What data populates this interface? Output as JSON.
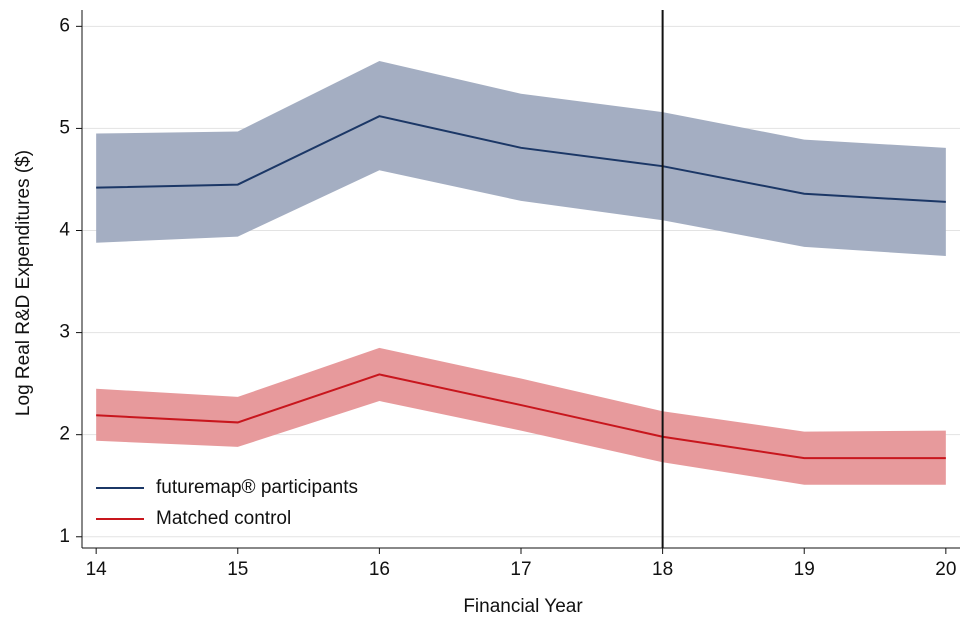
{
  "chart_data": {
    "type": "line-band",
    "x_label": "Financial Year",
    "y_label": "Log Real R&D Expenditures ($)",
    "x": [
      14,
      15,
      16,
      17,
      18,
      19,
      20
    ],
    "xlim": [
      13.9,
      20.1
    ],
    "xticks": [
      14,
      15,
      16,
      17,
      18,
      19,
      20
    ],
    "ylim": [
      0.89,
      6.16
    ],
    "yticks": [
      1,
      2,
      3,
      4,
      5,
      6
    ],
    "grid": true,
    "vline": 18,
    "legend": "lower-left",
    "series": [
      {
        "name": "futuremap® participants",
        "color": "#1b3766",
        "band_color": "#a4aec2",
        "values": [
          4.42,
          4.45,
          5.12,
          4.81,
          4.63,
          4.36,
          4.28
        ],
        "lower": [
          3.88,
          3.94,
          4.59,
          4.29,
          4.1,
          3.84,
          3.75
        ],
        "upper": [
          4.95,
          4.97,
          5.66,
          5.34,
          5.16,
          4.89,
          4.81
        ]
      },
      {
        "name": "Matched control",
        "color": "#c8161d",
        "band_color": "#e79a9c",
        "values": [
          2.19,
          2.12,
          2.59,
          2.29,
          1.98,
          1.77,
          1.77
        ],
        "lower": [
          1.94,
          1.88,
          2.33,
          2.04,
          1.73,
          1.51,
          1.51
        ],
        "upper": [
          2.45,
          2.37,
          2.85,
          2.55,
          2.23,
          2.03,
          2.04
        ]
      }
    ]
  }
}
